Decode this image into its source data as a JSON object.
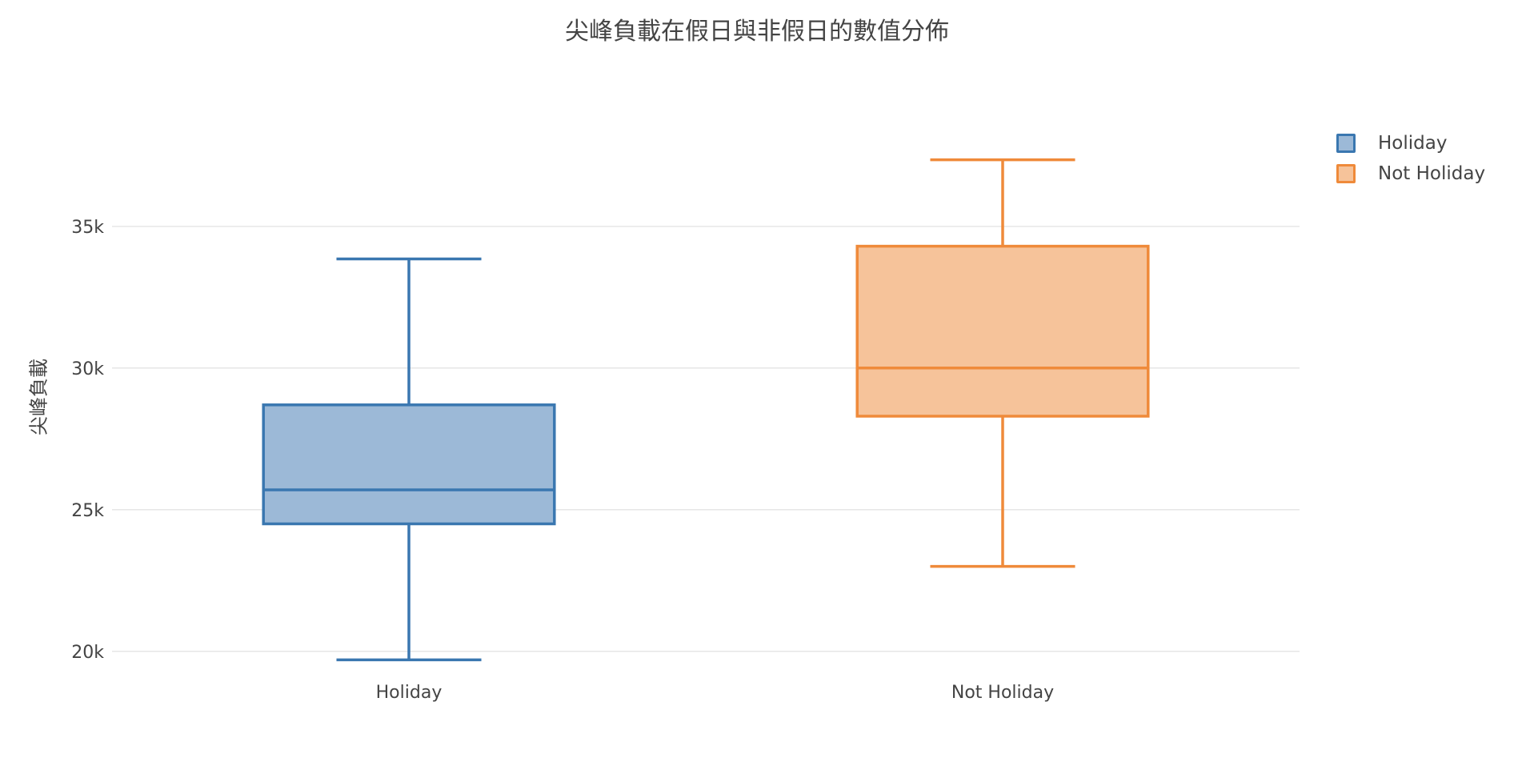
{
  "chart_data": {
    "type": "box",
    "title": "尖峰負載在假日與非假日的數值分佈",
    "xlabel": "",
    "ylabel": "尖峰負載",
    "ylim": [
      19400,
      39600
    ],
    "yticks": [
      20000,
      25000,
      30000,
      35000
    ],
    "ytick_labels": [
      "20k",
      "25k",
      "30k",
      "35k"
    ],
    "grid": true,
    "legend": "top-right",
    "categories": [
      "Holiday",
      "Not Holiday"
    ],
    "series": [
      {
        "name": "Holiday",
        "category": "Holiday",
        "min": 19700,
        "q1": 24500,
        "median": 25700,
        "q3": 28700,
        "max": 33850,
        "color": "#3a77b0",
        "fill": "#9cb9d7"
      },
      {
        "name": "Not Holiday",
        "category": "Not Holiday",
        "min": 23000,
        "q1": 28300,
        "median": 30000,
        "q3": 34300,
        "max": 37350,
        "color": "#ef8a3a",
        "fill": "#f6c39a"
      }
    ]
  }
}
